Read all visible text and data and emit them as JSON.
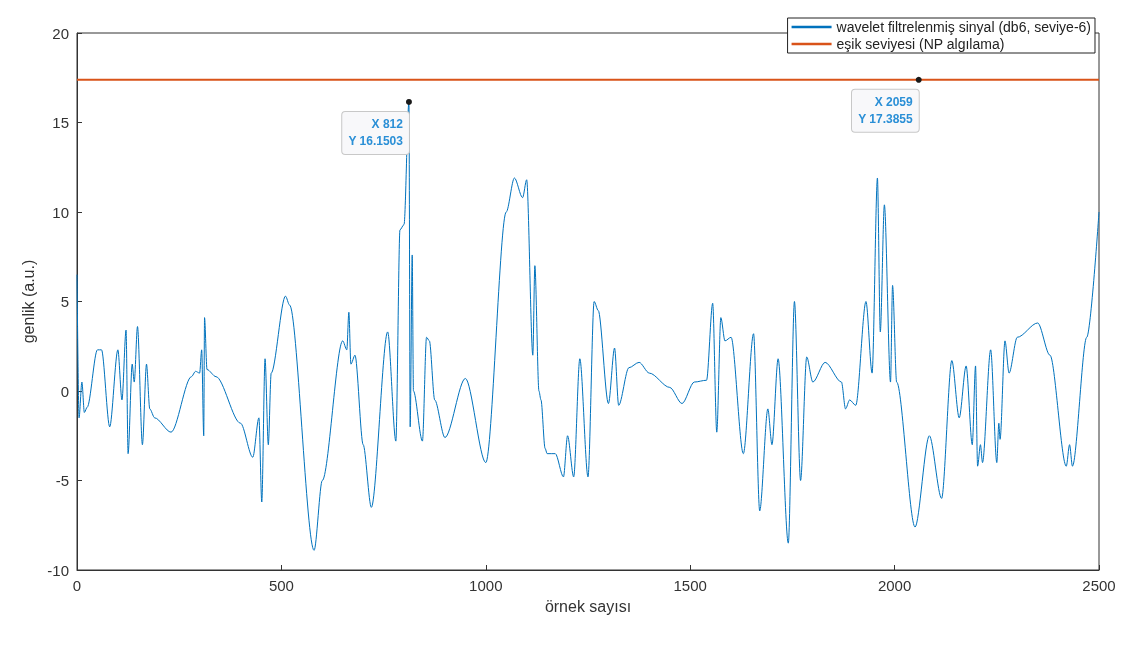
{
  "chart_data": {
    "type": "line",
    "xlabel": "örnek sayısı",
    "ylabel": "genlik (a.u.)",
    "xlim": [
      0,
      2500
    ],
    "xticks": [
      0,
      500,
      1000,
      1500,
      2000,
      2500
    ],
    "ylim": [
      -10,
      20
    ],
    "yticks": [
      -10,
      -5,
      0,
      5,
      10,
      15,
      20
    ],
    "grid": false,
    "legend": "top right",
    "marker": "none",
    "line_style": "solid",
    "series": [
      {
        "name": "wavelet filtrelenmiş sinyal (db6, seviye-6)",
        "color": "#0072bd",
        "x": [
          0,
          5,
          12,
          18,
          25,
          50,
          60,
          80,
          100,
          110,
          120,
          125,
          135,
          140,
          148,
          160,
          170,
          178,
          190,
          230,
          280,
          290,
          300,
          305,
          310,
          312,
          318,
          340,
          400,
          430,
          445,
          452,
          460,
          468,
          475,
          510,
          520,
          580,
          600,
          650,
          660,
          665,
          670,
          680,
          700,
          720,
          760,
          780,
          790,
          800,
          812,
          815,
          820,
          823,
          845,
          855,
          862,
          875,
          900,
          950,
          1000,
          1050,
          1070,
          1090,
          1100,
          1115,
          1120,
          1130,
          1135,
          1145,
          1150,
          1170,
          1190,
          1200,
          1215,
          1230,
          1250,
          1265,
          1275,
          1300,
          1315,
          1325,
          1350,
          1375,
          1400,
          1450,
          1480,
          1510,
          1540,
          1555,
          1565,
          1575,
          1585,
          1600,
          1630,
          1655,
          1670,
          1690,
          1700,
          1715,
          1740,
          1755,
          1770,
          1785,
          1800,
          1830,
          1870,
          1880,
          1890,
          1905,
          1930,
          1945,
          1958,
          1965,
          1975,
          1990,
          1995,
          2005,
          2050,
          2085,
          2115,
          2140,
          2158,
          2175,
          2190,
          2198,
          2203,
          2210,
          2215,
          2235,
          2250,
          2255,
          2258,
          2270,
          2280,
          2300,
          2350,
          2380,
          2420,
          2428,
          2435,
          2470,
          2500
        ],
        "values": [
          6.5,
          -1.5,
          0.5,
          -1.2,
          -0.9,
          2.3,
          2.3,
          -2.0,
          2.3,
          -0.5,
          3.4,
          -3.5,
          1.5,
          0.5,
          3.6,
          -3.0,
          1.5,
          -1.0,
          -1.5,
          -2.3,
          0.8,
          1.1,
          1.0,
          2.3,
          -2.5,
          4.1,
          1.2,
          0.8,
          -1.8,
          -3.7,
          -1.5,
          -6.2,
          1.8,
          -3.0,
          1.0,
          5.3,
          4.8,
          -8.9,
          -5.0,
          2.8,
          2.3,
          4.4,
          1.5,
          2.0,
          -3.0,
          -6.5,
          3.3,
          -2.8,
          9.0,
          9.3,
          16.1503,
          -2.0,
          7.6,
          0.0,
          -2.8,
          3.0,
          2.8,
          -0.5,
          -2.6,
          0.7,
          -4.0,
          10.0,
          11.9,
          10.8,
          11.8,
          2.0,
          7.0,
          0.0,
          -0.5,
          -3.2,
          -3.5,
          -3.5,
          -4.8,
          -2.5,
          -4.8,
          1.8,
          -4.8,
          5.0,
          4.5,
          -0.7,
          2.4,
          -0.8,
          1.3,
          1.6,
          1.0,
          0.2,
          -0.7,
          0.5,
          0.6,
          4.9,
          -2.3,
          4.1,
          2.8,
          3.0,
          -3.5,
          3.2,
          -6.7,
          -1.0,
          -3.0,
          1.8,
          -8.5,
          5.0,
          -5.0,
          1.9,
          0.5,
          1.6,
          0.5,
          -1.0,
          -0.5,
          -0.8,
          5.0,
          1.0,
          11.9,
          3.3,
          10.4,
          0.5,
          5.9,
          0.5,
          -7.6,
          -2.5,
          -6.0,
          1.7,
          -1.5,
          1.4,
          -3.0,
          1.4,
          -4.2,
          -3.0,
          -4.0,
          2.3,
          -4.0,
          -1.8,
          -2.7,
          2.8,
          1.0,
          3.0,
          3.8,
          2.0,
          -4.2,
          -3.0,
          -4.2,
          3.0,
          10.0
        ]
      },
      {
        "name": "eşik seviyesi (NP algılama)",
        "color": "#d95319",
        "x": [
          0,
          2500
        ],
        "values": [
          17.3855,
          17.3855
        ]
      }
    ],
    "annotations": [
      {
        "text": "X 812\nY 16.1503",
        "x": 812,
        "y": 16.1503
      },
      {
        "text": "X 2059\nY 17.3855",
        "x": 2059,
        "y": 17.3855
      }
    ]
  }
}
